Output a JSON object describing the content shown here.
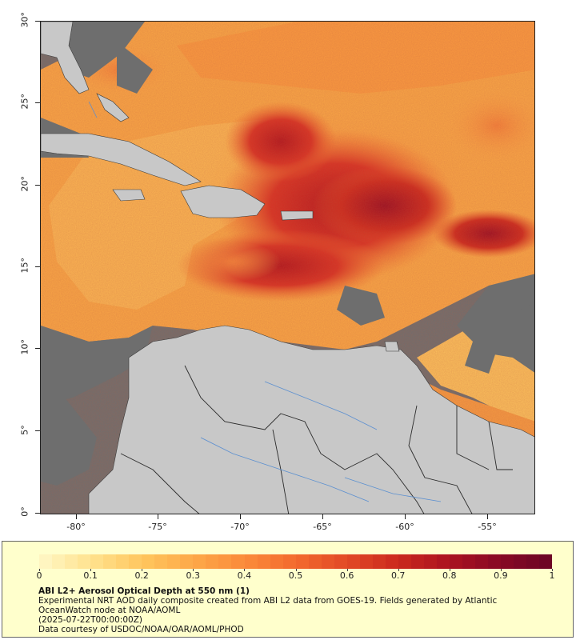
{
  "map": {
    "y_axis_labels": [
      "30°",
      "25°",
      "20°",
      "15°",
      "10°",
      "5°",
      "0°"
    ],
    "x_axis_labels": [
      "-80°",
      "-75°",
      "-70°",
      "-65°",
      "-60°",
      "-55°"
    ],
    "colors": {
      "no_data": "#6e6e6e",
      "land": "#c8c8c8",
      "land_borders": "#3a3a3a",
      "rivers": "#5b8fd0"
    }
  },
  "legend": {
    "colorbar_ticks": [
      "0",
      "0.1",
      "0.2",
      "0.3",
      "0.4",
      "0.5",
      "0.6",
      "0.7",
      "0.8",
      "0.9",
      "1"
    ],
    "colorbar_range": [
      0,
      1
    ],
    "colorbar_colors": [
      "#fff5c0",
      "#ffe08a",
      "#ffc45c",
      "#fda748",
      "#fb8a3a",
      "#f36a2e",
      "#e24a26",
      "#cc2a1e",
      "#ad1420",
      "#8a0a24",
      "#6e0626"
    ],
    "title": "ABI L2+ Aerosol Optical Depth at 550 nm (1)",
    "line1": "Experimental NRT AOD daily composite created from ABI L2 data from GOES-19. Fields generated by Atlantic",
    "line2": "OceanWatch node at NOAA/AOML",
    "line3": "(2025-07-22T00:00:00Z)",
    "line4": "Data courtesy of USDOC/NOAA/OAR/AOML/PHOD"
  }
}
